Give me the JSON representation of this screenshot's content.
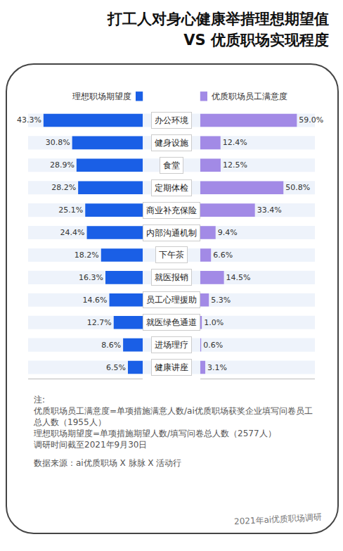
{
  "chart_data": {
    "type": "bar",
    "title": "打工人对身心健康举措理想期望值\nVS 优质职场实现程度",
    "orientation": "horizontal",
    "data_labels": true,
    "tick_labels": false,
    "grid": false,
    "categories": [
      "办公环境",
      "健身设施",
      "食堂",
      "定期体检",
      "商业补充保险",
      "内部沟通机制",
      "下午茶",
      "就医报销",
      "员工心理援助",
      "就医绿色通道",
      "进场理疗",
      "健康讲座"
    ],
    "series": [
      {
        "name": "理想职场期望度",
        "color": "#1a5fe6",
        "xlim": [
          0,
          50
        ],
        "values": [
          43.3,
          30.8,
          28.9,
          28.2,
          25.1,
          24.4,
          18.2,
          16.3,
          14.6,
          12.7,
          8.6,
          6.5
        ],
        "value_labels": [
          "43.3%",
          "30.8%",
          "28.9%",
          "28.2%",
          "25.1%",
          "24.4%",
          "18.2%",
          "16.3%",
          "14.6%",
          "12.7%",
          "8.6%",
          "6.5%"
        ]
      },
      {
        "name": "优质职场员工满意度",
        "color": "#a28ae6",
        "xlim": [
          0,
          70
        ],
        "values": [
          59.0,
          12.4,
          12.5,
          50.8,
          33.4,
          9.4,
          6.6,
          14.5,
          5.3,
          1.0,
          0.6,
          3.1
        ],
        "value_labels": [
          "59.0%",
          "12.4%",
          "12.5%",
          "50.8%",
          "33.4%",
          "9.4%",
          "6.6%",
          "14.5%",
          "5.3%",
          "1.0%",
          "0.6%",
          "3.1%"
        ]
      }
    ],
    "notes": [
      "注:",
      "优质职场员工满意度=单项措施满意人数/ai优质职场获奖企业填写问卷员工总人数（1955人）",
      "理想职场期望度=单项措施期望人数/填写问卷总人数（2577人）",
      "调研时间截至2021年9月30日"
    ],
    "source": "数据来源：ai优质职场 X 脉脉 X 活动行",
    "footer": "2021年ai优质职场调研"
  }
}
